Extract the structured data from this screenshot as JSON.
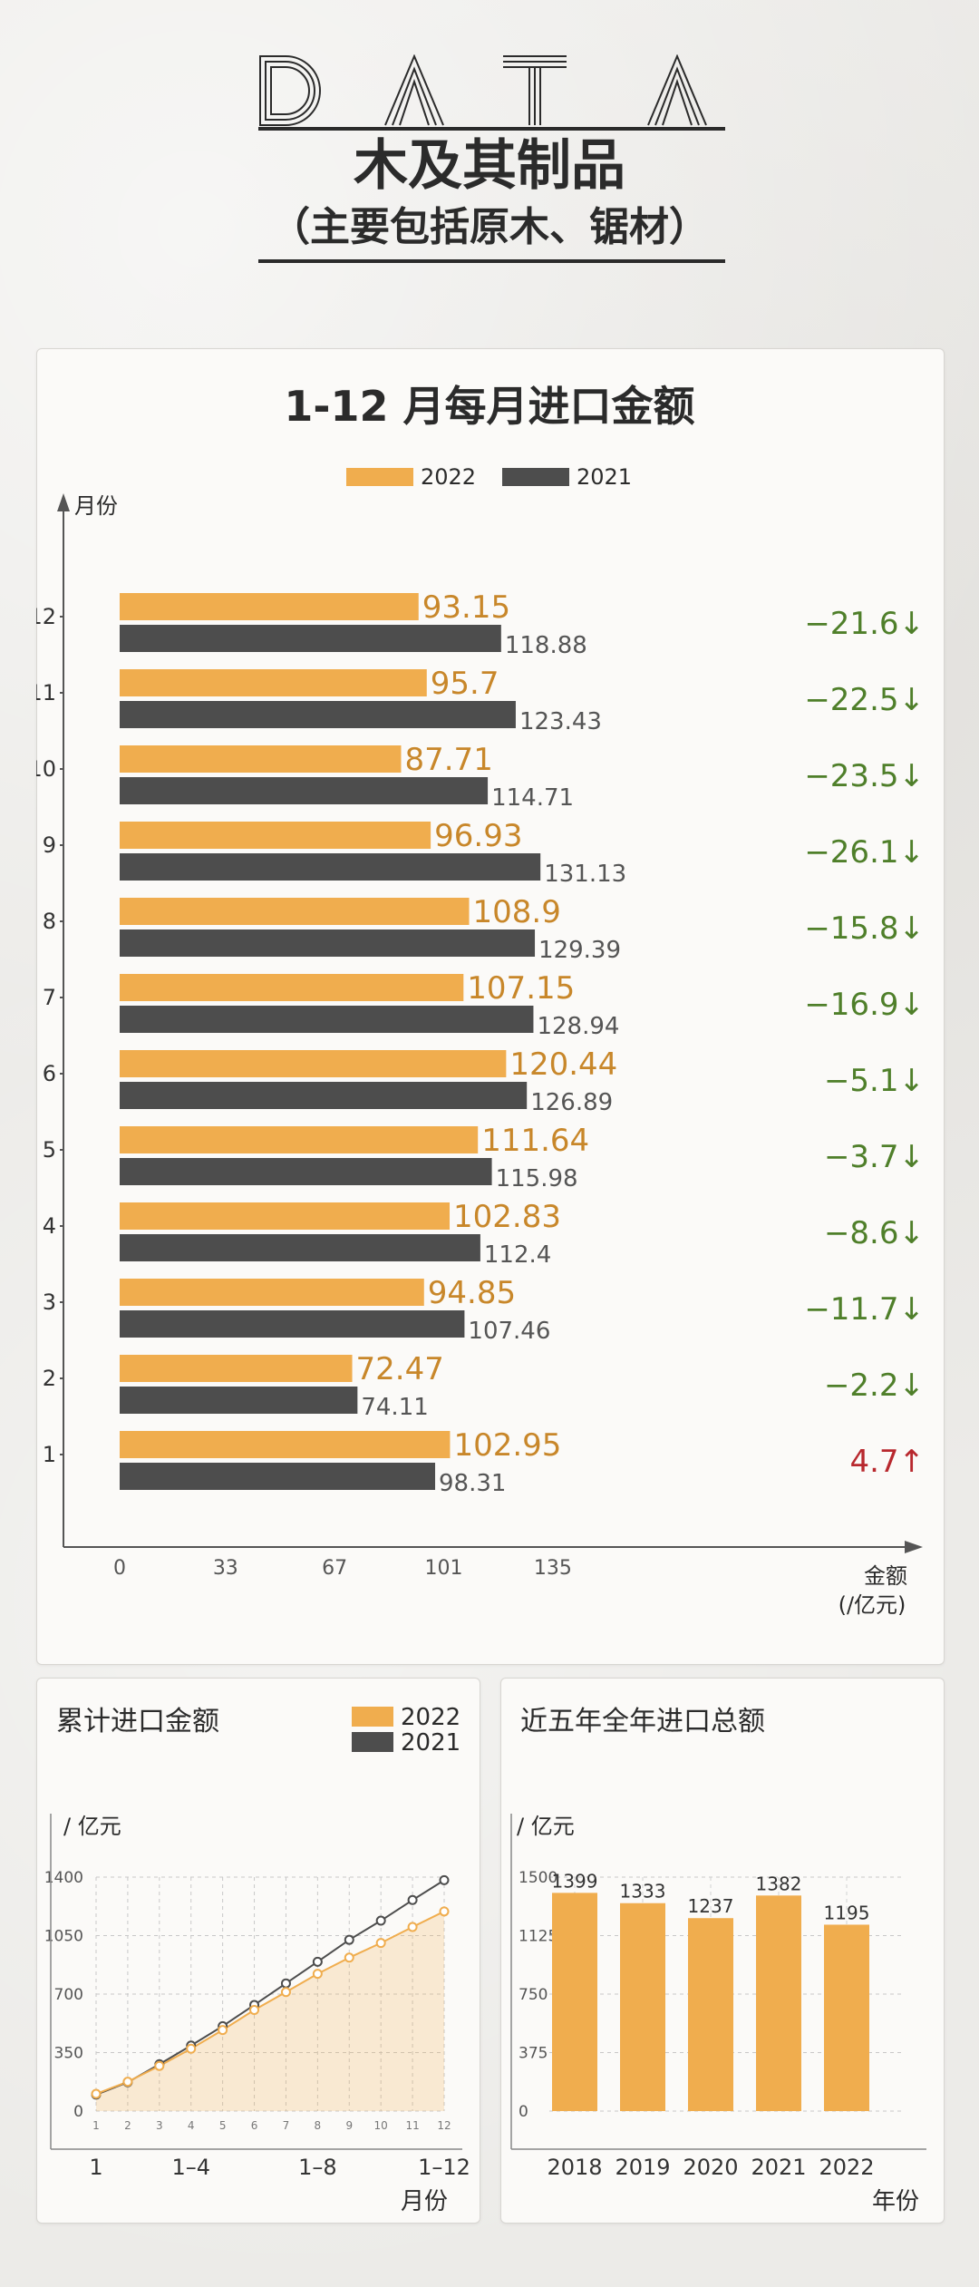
{
  "header": {
    "data_word": "DATA",
    "title": "木及其制品",
    "subtitle": "（主要包括原木、锯材）"
  },
  "main_chart": {
    "title": "1-12 月每月进口金额",
    "y_axis_label": "月份",
    "x_axis_label_line1": "金额",
    "x_axis_label_line2": "(/亿元)",
    "x_ticks": [
      "0",
      "33",
      "67",
      "101",
      "135"
    ],
    "legend": [
      "2022",
      "2021"
    ]
  },
  "cumulative_chart": {
    "title": "累计进口金额",
    "unit_label": "/ 亿元",
    "y_ticks": [
      "0",
      "350",
      "700",
      "1050",
      "1400"
    ],
    "x_small_ticks": [
      "1",
      "2",
      "3",
      "4",
      "5",
      "6",
      "7",
      "8",
      "9",
      "10",
      "11",
      "12"
    ],
    "x_big_ticks": [
      "1",
      "1–4",
      "1–8",
      "1–12"
    ],
    "x_axis_label": "月份",
    "legend": [
      "2022",
      "2021"
    ]
  },
  "annual_chart": {
    "title": "近五年全年进口总额",
    "unit_label": "/ 亿元",
    "y_ticks": [
      "0",
      "375",
      "750",
      "1125",
      "1500"
    ],
    "x_axis_label": "年份"
  },
  "colors": {
    "y2022": "#f0ad4e",
    "y2021": "#4d4d4d",
    "down": "#4f7f2a",
    "up": "#b8282e",
    "label2022": "#c8872a"
  },
  "chart_data": [
    {
      "type": "bar",
      "title": "1-12 月每月进口金额",
      "ylabel": "月份",
      "xlabel": "金额 (/亿元)",
      "categories": [
        "12",
        "11",
        "10",
        "9",
        "8",
        "7",
        "6",
        "5",
        "4",
        "3",
        "2",
        "1"
      ],
      "series": [
        {
          "name": "2022",
          "values": [
            93.15,
            95.7,
            87.71,
            96.93,
            108.9,
            107.15,
            120.44,
            111.64,
            102.83,
            94.85,
            72.47,
            102.95
          ]
        },
        {
          "name": "2021",
          "values": [
            118.88,
            123.43,
            114.71,
            131.13,
            129.39,
            128.94,
            126.89,
            115.98,
            112.4,
            107.46,
            74.11,
            98.31
          ]
        }
      ],
      "change": [
        "−21.6↓",
        "−22.5↓",
        "−23.5↓",
        "−26.1↓",
        "−15.8↓",
        "−16.9↓",
        "−5.1↓",
        "−3.7↓",
        "−8.6↓",
        "−11.7↓",
        "−2.2↓",
        "4.7↑"
      ],
      "xlim": [
        0,
        135
      ],
      "legend": "top-center",
      "grid": false
    },
    {
      "type": "area",
      "title": "累计进口金额",
      "ylabel": "/ 亿元",
      "xlabel": "月份",
      "x": [
        1,
        2,
        3,
        4,
        5,
        6,
        7,
        8,
        9,
        10,
        11,
        12
      ],
      "series": [
        {
          "name": "2022",
          "values": [
            102.95,
            175.42,
            270.27,
            373.1,
            484.74,
            605.18,
            712.33,
            821.23,
            918.16,
            1005.87,
            1101.57,
            1194.72
          ]
        },
        {
          "name": "2021",
          "values": [
            98.31,
            172.42,
            279.88,
            392.28,
            508.26,
            635.15,
            764.09,
            893.48,
            1024.61,
            1139.32,
            1262.75,
            1381.63
          ]
        }
      ],
      "ylim": [
        0,
        1400
      ],
      "grid": true,
      "legend": "top-right"
    },
    {
      "type": "bar",
      "title": "近五年全年进口总额",
      "ylabel": "/ 亿元",
      "xlabel": "年份",
      "categories": [
        "2018",
        "2019",
        "2020",
        "2021",
        "2022"
      ],
      "values": [
        1399,
        1333,
        1237,
        1382,
        1195
      ],
      "ylim": [
        0,
        1500
      ],
      "grid": true
    }
  ]
}
